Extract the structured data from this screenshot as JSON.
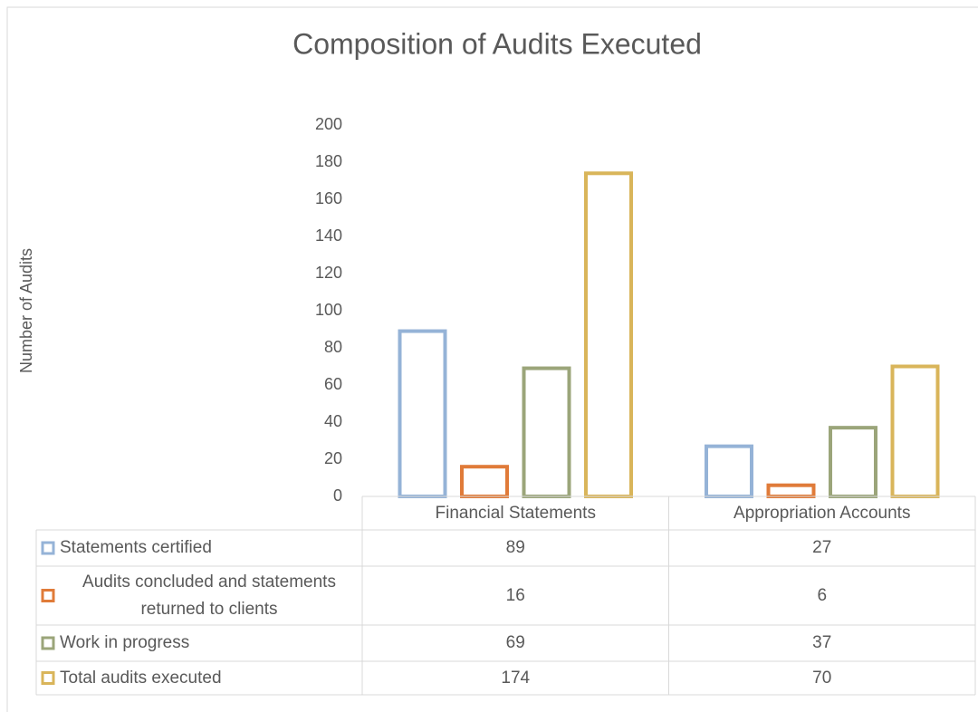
{
  "chart_data": {
    "type": "bar",
    "title": "Composition of Audits Executed",
    "y_label": "Number of Audits",
    "categories": [
      "Financial Statements",
      "Appropriation Accounts"
    ],
    "series": [
      {
        "name": "Statements certified",
        "color": "#95b3d7",
        "values": [
          89,
          27
        ]
      },
      {
        "name": "Audits concluded and statements returned to clients",
        "color": "#e07b39",
        "values": [
          16,
          6
        ]
      },
      {
        "name": "Work in progress",
        "color": "#9ba57a",
        "values": [
          69,
          37
        ]
      },
      {
        "name": "Total audits executed",
        "color": "#d9b55a",
        "values": [
          174,
          70
        ]
      }
    ],
    "ylim": [
      0,
      200
    ],
    "yticks": [
      0,
      20,
      40,
      60,
      80,
      100,
      120,
      140,
      160,
      180,
      200
    ],
    "grid": false,
    "data_table": true
  }
}
